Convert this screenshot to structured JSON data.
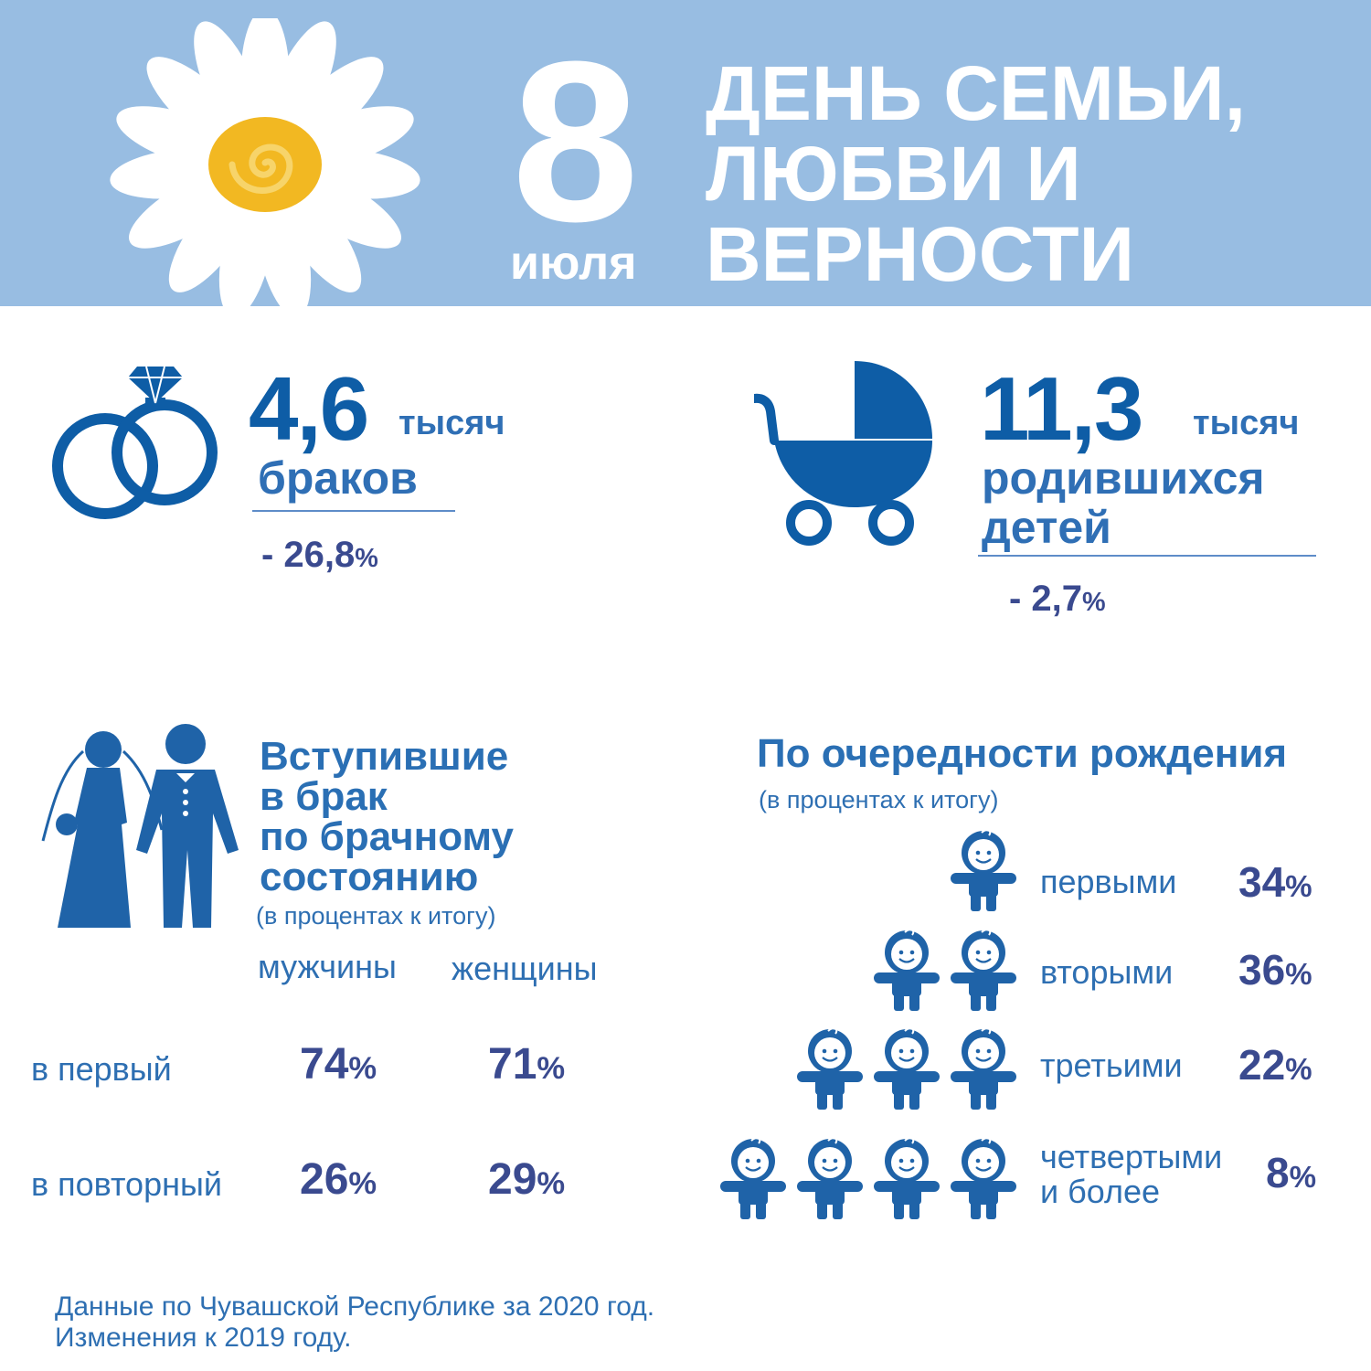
{
  "header": {
    "day": "8",
    "month": "июля",
    "title_lines": [
      "ДЕНЬ СЕМЬИ,",
      "ЛЮБВИ И",
      "ВЕРНОСТИ"
    ]
  },
  "marriages": {
    "value": "4,6",
    "unit": "тысяч",
    "label": "браков",
    "change": "- 26,8",
    "change_unit": "%"
  },
  "births": {
    "value": "11,3",
    "unit": "тысяч",
    "label_lines": [
      "родившихся",
      "детей"
    ],
    "change": "- 2,7",
    "change_unit": "%"
  },
  "marital_status": {
    "title_lines": [
      "Вступившие",
      "в брак",
      "по брачному",
      "состоянию"
    ],
    "note": "(в процентах к итогу)",
    "columns": [
      "мужчины",
      "женщины"
    ],
    "rows": [
      {
        "label": "в первый",
        "men": "74",
        "women": "71"
      },
      {
        "label": "в повторный",
        "men": "26",
        "women": "29"
      }
    ],
    "pct": "%"
  },
  "birth_order": {
    "title": "По очередности рождения",
    "note": "(в процентах к итогу)",
    "rows": [
      {
        "label_lines": [
          "первыми"
        ],
        "value": "34",
        "babies": 1
      },
      {
        "label_lines": [
          "вторыми"
        ],
        "value": "36",
        "babies": 2
      },
      {
        "label_lines": [
          "третьими"
        ],
        "value": "22",
        "babies": 3
      },
      {
        "label_lines": [
          "четвертыми",
          "и более"
        ],
        "value": "8",
        "babies": 4
      }
    ],
    "pct": "%"
  },
  "footer": {
    "lines": [
      "Данные по Чувашской Республике за 2020 год.",
      "Изменения к 2019 году."
    ]
  },
  "colors": {
    "banner": "#98bde2",
    "icon_blue": "#0e5da6",
    "number_navy": "#3a4a8f",
    "text_blue": "#2e6fb2",
    "daisy_center": "#f2b822"
  },
  "icons": [
    "daisy-icon",
    "wedding-rings-icon",
    "baby-stroller-icon",
    "bride-groom-icon",
    "baby-icon"
  ]
}
